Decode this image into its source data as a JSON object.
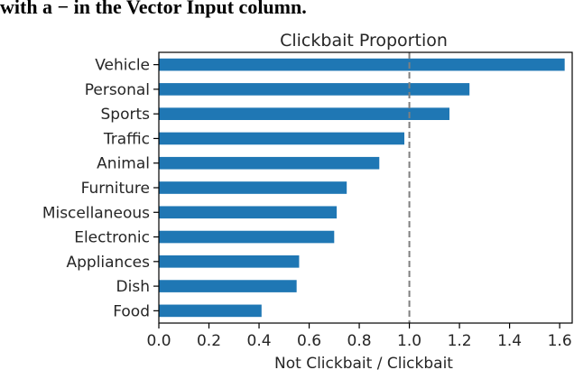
{
  "caption_fragment": "with a − in the Vector Input column.",
  "chart_data": {
    "type": "bar",
    "orientation": "horizontal",
    "title": "Clickbait Proportion",
    "xlabel": "Not Clickbait / Clickbait",
    "ylabel": "",
    "categories": [
      "Vehicle",
      "Personal",
      "Sports",
      "Traffic",
      "Animal",
      "Furniture",
      "Miscellaneous",
      "Electronic",
      "Appliances",
      "Dish",
      "Food"
    ],
    "values": [
      1.62,
      1.24,
      1.16,
      0.98,
      0.88,
      0.75,
      0.71,
      0.7,
      0.56,
      0.55,
      0.41
    ],
    "xlim": [
      0,
      1.65
    ],
    "xticks": [
      "0.0",
      "0.2",
      "0.4",
      "0.6",
      "0.8",
      "1.0",
      "1.2",
      "1.4",
      "1.6"
    ],
    "reference_line": {
      "x": 1.0,
      "style": "dashed",
      "color": "#808080"
    },
    "bar_color": "#1f77b4",
    "grid": false,
    "legend": "none"
  }
}
